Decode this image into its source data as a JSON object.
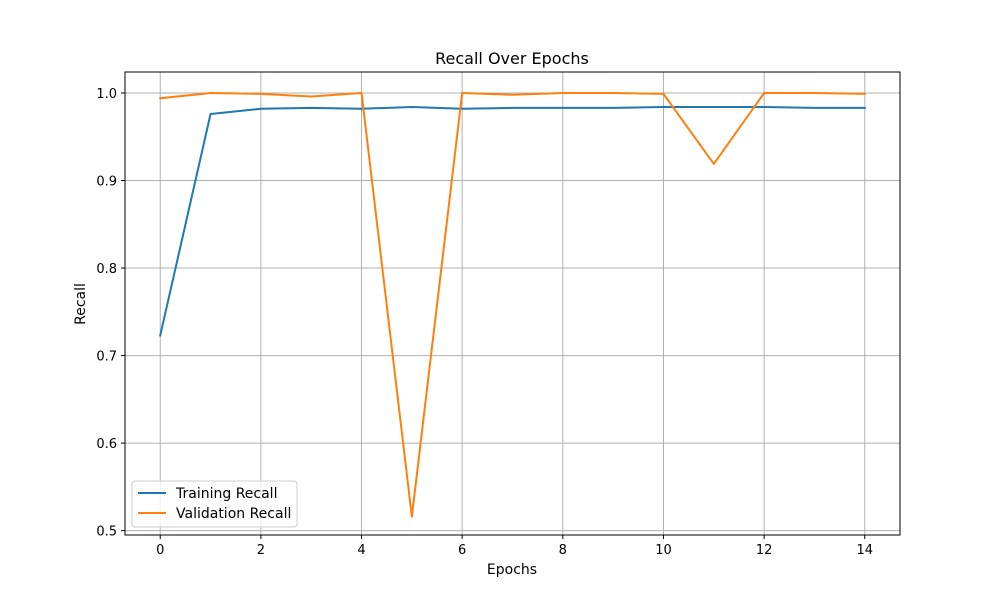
{
  "chart_data": {
    "type": "line",
    "title": "Recall Over Epochs",
    "xlabel": "Epochs",
    "ylabel": "Recall",
    "x": [
      0,
      1,
      2,
      3,
      4,
      5,
      6,
      7,
      8,
      9,
      10,
      11,
      12,
      13,
      14
    ],
    "xlim": [
      -0.7,
      14.7
    ],
    "ylim": [
      0.495,
      1.024
    ],
    "xticks": [
      "0",
      "2",
      "4",
      "6",
      "8",
      "10",
      "12",
      "14"
    ],
    "yticks": [
      "0.5",
      "0.6",
      "0.7",
      "0.8",
      "0.9",
      "1.0"
    ],
    "grid": true,
    "legend_position": "lower-left",
    "series": [
      {
        "name": "Training Recall",
        "color": "#1f77b4",
        "values": [
          0.723,
          0.976,
          0.982,
          0.983,
          0.982,
          0.984,
          0.982,
          0.983,
          0.983,
          0.983,
          0.984,
          0.984,
          0.984,
          0.983,
          0.983
        ]
      },
      {
        "name": "Validation Recall",
        "color": "#ff7f0e",
        "values": [
          0.994,
          1.0,
          0.999,
          0.996,
          1.0,
          0.516,
          1.0,
          0.998,
          1.0,
          1.0,
          0.999,
          0.919,
          1.0,
          1.0,
          0.999
        ]
      }
    ]
  }
}
